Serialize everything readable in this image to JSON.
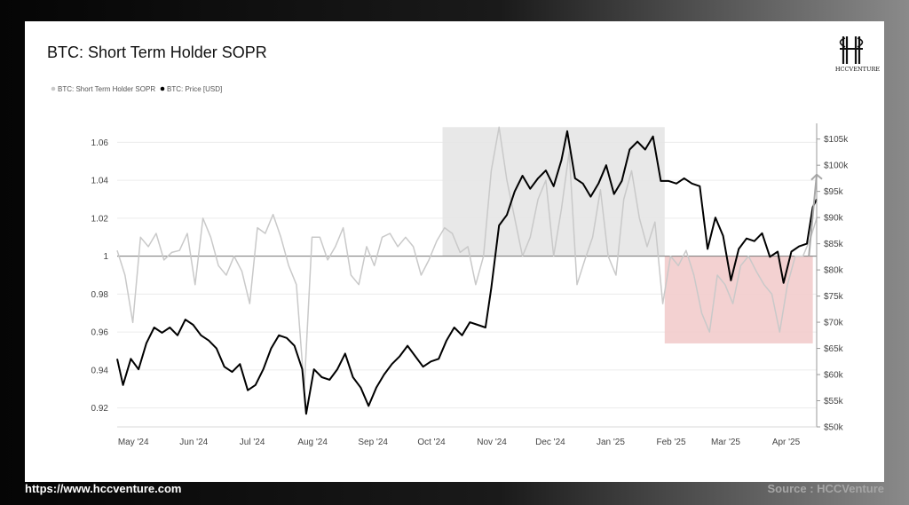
{
  "chart_data": {
    "type": "line",
    "title": "BTC: Short Term Holder SOPR",
    "x_ticks": [
      "May '24",
      "Jun '24",
      "Jul '24",
      "Aug '24",
      "Sep '24",
      "Oct '24",
      "Nov '24",
      "Dec '24",
      "Jan '25",
      "Feb '25",
      "Mar '25",
      "Apr '25"
    ],
    "x_range": [
      "2024-04-30",
      "2025-04-24"
    ],
    "y_left": {
      "range": [
        0.91,
        1.07
      ],
      "ticks": [
        0.92,
        0.94,
        0.96,
        0.98,
        1.0,
        1.02,
        1.04,
        1.06
      ],
      "tick_labels": [
        "0.92",
        "0.94",
        "0.96",
        "0.98",
        "1",
        "1.02",
        "1.04",
        "1.06"
      ]
    },
    "y_right": {
      "range": [
        50000,
        108000
      ],
      "ticks": [
        50000,
        55000,
        60000,
        65000,
        70000,
        75000,
        80000,
        85000,
        90000,
        95000,
        100000,
        105000
      ],
      "tick_labels": [
        "$50k",
        "$55k",
        "$60k",
        "$65k",
        "$70k",
        "$75k",
        "$80k",
        "$85k",
        "$90k",
        "$95k",
        "$100k",
        "$105k"
      ]
    },
    "legend_placement": "top-left",
    "grid": true,
    "reference_line": 1.0,
    "series": [
      {
        "name": "BTC: Short Term Holder SOPR",
        "axis": "left",
        "color": "#c9c9c9",
        "x": [
          "2024-04-30",
          "2024-05-04",
          "2024-05-08",
          "2024-05-12",
          "2024-05-16",
          "2024-05-20",
          "2024-05-24",
          "2024-05-28",
          "2024-06-01",
          "2024-06-05",
          "2024-06-09",
          "2024-06-13",
          "2024-06-17",
          "2024-06-21",
          "2024-06-25",
          "2024-06-29",
          "2024-07-03",
          "2024-07-07",
          "2024-07-11",
          "2024-07-15",
          "2024-07-19",
          "2024-07-23",
          "2024-07-27",
          "2024-07-31",
          "2024-08-04",
          "2024-08-08",
          "2024-08-12",
          "2024-08-16",
          "2024-08-20",
          "2024-08-24",
          "2024-08-28",
          "2024-09-01",
          "2024-09-05",
          "2024-09-09",
          "2024-09-13",
          "2024-09-17",
          "2024-09-21",
          "2024-09-25",
          "2024-09-29",
          "2024-10-03",
          "2024-10-07",
          "2024-10-11",
          "2024-10-15",
          "2024-10-19",
          "2024-10-23",
          "2024-10-27",
          "2024-10-31",
          "2024-11-04",
          "2024-11-08",
          "2024-11-12",
          "2024-11-16",
          "2024-11-20",
          "2024-11-24",
          "2024-11-28",
          "2024-12-02",
          "2024-12-06",
          "2024-12-10",
          "2024-12-14",
          "2024-12-18",
          "2024-12-22",
          "2024-12-26",
          "2024-12-30",
          "2025-01-03",
          "2025-01-07",
          "2025-01-11",
          "2025-01-15",
          "2025-01-19",
          "2025-01-23",
          "2025-01-27",
          "2025-01-31",
          "2025-02-04",
          "2025-02-08",
          "2025-02-12",
          "2025-02-16",
          "2025-02-20",
          "2025-02-24",
          "2025-02-28",
          "2025-03-04",
          "2025-03-08",
          "2025-03-12",
          "2025-03-16",
          "2025-03-20",
          "2025-03-24",
          "2025-03-28",
          "2025-04-01",
          "2025-04-05",
          "2025-04-09",
          "2025-04-13",
          "2025-04-17",
          "2025-04-21",
          "2025-04-24"
        ],
        "values": [
          1.003,
          0.99,
          0.965,
          1.01,
          1.005,
          1.012,
          0.998,
          1.002,
          1.003,
          1.012,
          0.985,
          1.02,
          1.01,
          0.995,
          0.99,
          1.0,
          0.992,
          0.975,
          1.015,
          1.012,
          1.022,
          1.01,
          0.995,
          0.985,
          0.93,
          1.01,
          1.01,
          0.998,
          1.005,
          1.015,
          0.99,
          0.985,
          1.005,
          0.995,
          1.01,
          1.012,
          1.005,
          1.01,
          1.005,
          0.99,
          0.998,
          1.008,
          1.015,
          1.012,
          1.002,
          1.005,
          0.985,
          1.0,
          1.045,
          1.068,
          1.04,
          1.02,
          1.0,
          1.01,
          1.03,
          1.04,
          1.0,
          1.025,
          1.055,
          0.985,
          0.998,
          1.01,
          1.035,
          1.0,
          0.99,
          1.03,
          1.045,
          1.02,
          1.005,
          1.018,
          0.975,
          1.0,
          0.995,
          1.003,
          0.99,
          0.97,
          0.96,
          0.99,
          0.985,
          0.975,
          0.995,
          1.0,
          0.992,
          0.985,
          0.98,
          0.96,
          0.985,
          1.0,
          1.0,
          1.01,
          1.02
        ]
      },
      {
        "name": "BTC: Price [USD]",
        "axis": "right",
        "color": "#000000",
        "x": [
          "2024-04-30",
          "2024-05-03",
          "2024-05-07",
          "2024-05-11",
          "2024-05-15",
          "2024-05-19",
          "2024-05-23",
          "2024-05-27",
          "2024-05-31",
          "2024-06-04",
          "2024-06-08",
          "2024-06-12",
          "2024-06-16",
          "2024-06-20",
          "2024-06-24",
          "2024-06-28",
          "2024-07-02",
          "2024-07-06",
          "2024-07-10",
          "2024-07-14",
          "2024-07-18",
          "2024-07-22",
          "2024-07-26",
          "2024-07-30",
          "2024-08-03",
          "2024-08-05",
          "2024-08-09",
          "2024-08-13",
          "2024-08-17",
          "2024-08-21",
          "2024-08-25",
          "2024-08-29",
          "2024-09-02",
          "2024-09-06",
          "2024-09-10",
          "2024-09-14",
          "2024-09-18",
          "2024-09-22",
          "2024-09-26",
          "2024-09-30",
          "2024-10-04",
          "2024-10-08",
          "2024-10-12",
          "2024-10-16",
          "2024-10-20",
          "2024-10-24",
          "2024-10-28",
          "2024-11-01",
          "2024-11-05",
          "2024-11-08",
          "2024-11-12",
          "2024-11-16",
          "2024-11-20",
          "2024-11-24",
          "2024-11-28",
          "2024-12-02",
          "2024-12-06",
          "2024-12-10",
          "2024-12-14",
          "2024-12-17",
          "2024-12-21",
          "2024-12-25",
          "2024-12-29",
          "2025-01-02",
          "2025-01-06",
          "2025-01-10",
          "2025-01-14",
          "2025-01-18",
          "2025-01-22",
          "2025-01-26",
          "2025-01-30",
          "2025-02-03",
          "2025-02-07",
          "2025-02-11",
          "2025-02-15",
          "2025-02-19",
          "2025-02-23",
          "2025-02-27",
          "2025-03-03",
          "2025-03-07",
          "2025-03-11",
          "2025-03-15",
          "2025-03-19",
          "2025-03-23",
          "2025-03-27",
          "2025-03-31",
          "2025-04-04",
          "2025-04-07",
          "2025-04-11",
          "2025-04-15",
          "2025-04-19",
          "2025-04-22",
          "2025-04-24"
        ],
        "values": [
          63000,
          58000,
          63000,
          61000,
          66000,
          69000,
          68000,
          69000,
          67500,
          70500,
          69500,
          67500,
          66500,
          65000,
          61500,
          60500,
          62000,
          57000,
          58000,
          61000,
          65000,
          67500,
          67000,
          65500,
          61000,
          52500,
          61000,
          59500,
          59000,
          61000,
          64000,
          59500,
          57500,
          54000,
          57500,
          60000,
          62000,
          63500,
          65500,
          63500,
          61500,
          62500,
          63000,
          66500,
          69000,
          67500,
          70000,
          69500,
          69000,
          76500,
          88500,
          90500,
          95000,
          98000,
          95500,
          97500,
          99000,
          96000,
          101000,
          106500,
          97500,
          96500,
          94000,
          96500,
          100000,
          94500,
          97000,
          103000,
          104500,
          103000,
          105500,
          97000,
          97000,
          96500,
          97500,
          96500,
          96000,
          84000,
          90000,
          86500,
          78000,
          84000,
          86000,
          85500,
          87000,
          82500,
          83500,
          77500,
          83500,
          84500,
          85000,
          92000,
          93500
        ]
      }
    ],
    "annotations": [
      {
        "type": "shaded-region",
        "color": "#e6e6e6",
        "x": [
          "2024-10-14",
          "2025-02-05"
        ],
        "y": [
          1.0,
          1.068
        ]
      },
      {
        "type": "shaded-region",
        "color": "#f2cccc",
        "x": [
          "2025-02-05",
          "2025-04-22"
        ],
        "y": [
          0.954,
          1.0
        ]
      },
      {
        "type": "arrow",
        "color": "#a8a8a8",
        "x": [
          "2025-04-20",
          "2025-04-24"
        ],
        "y": [
          1.0,
          1.043
        ]
      }
    ]
  },
  "logo": {
    "text": "HCCVENTURE"
  },
  "footer": {
    "left": "https://www.hccventure.com",
    "right": "Source : HCCVenture"
  }
}
